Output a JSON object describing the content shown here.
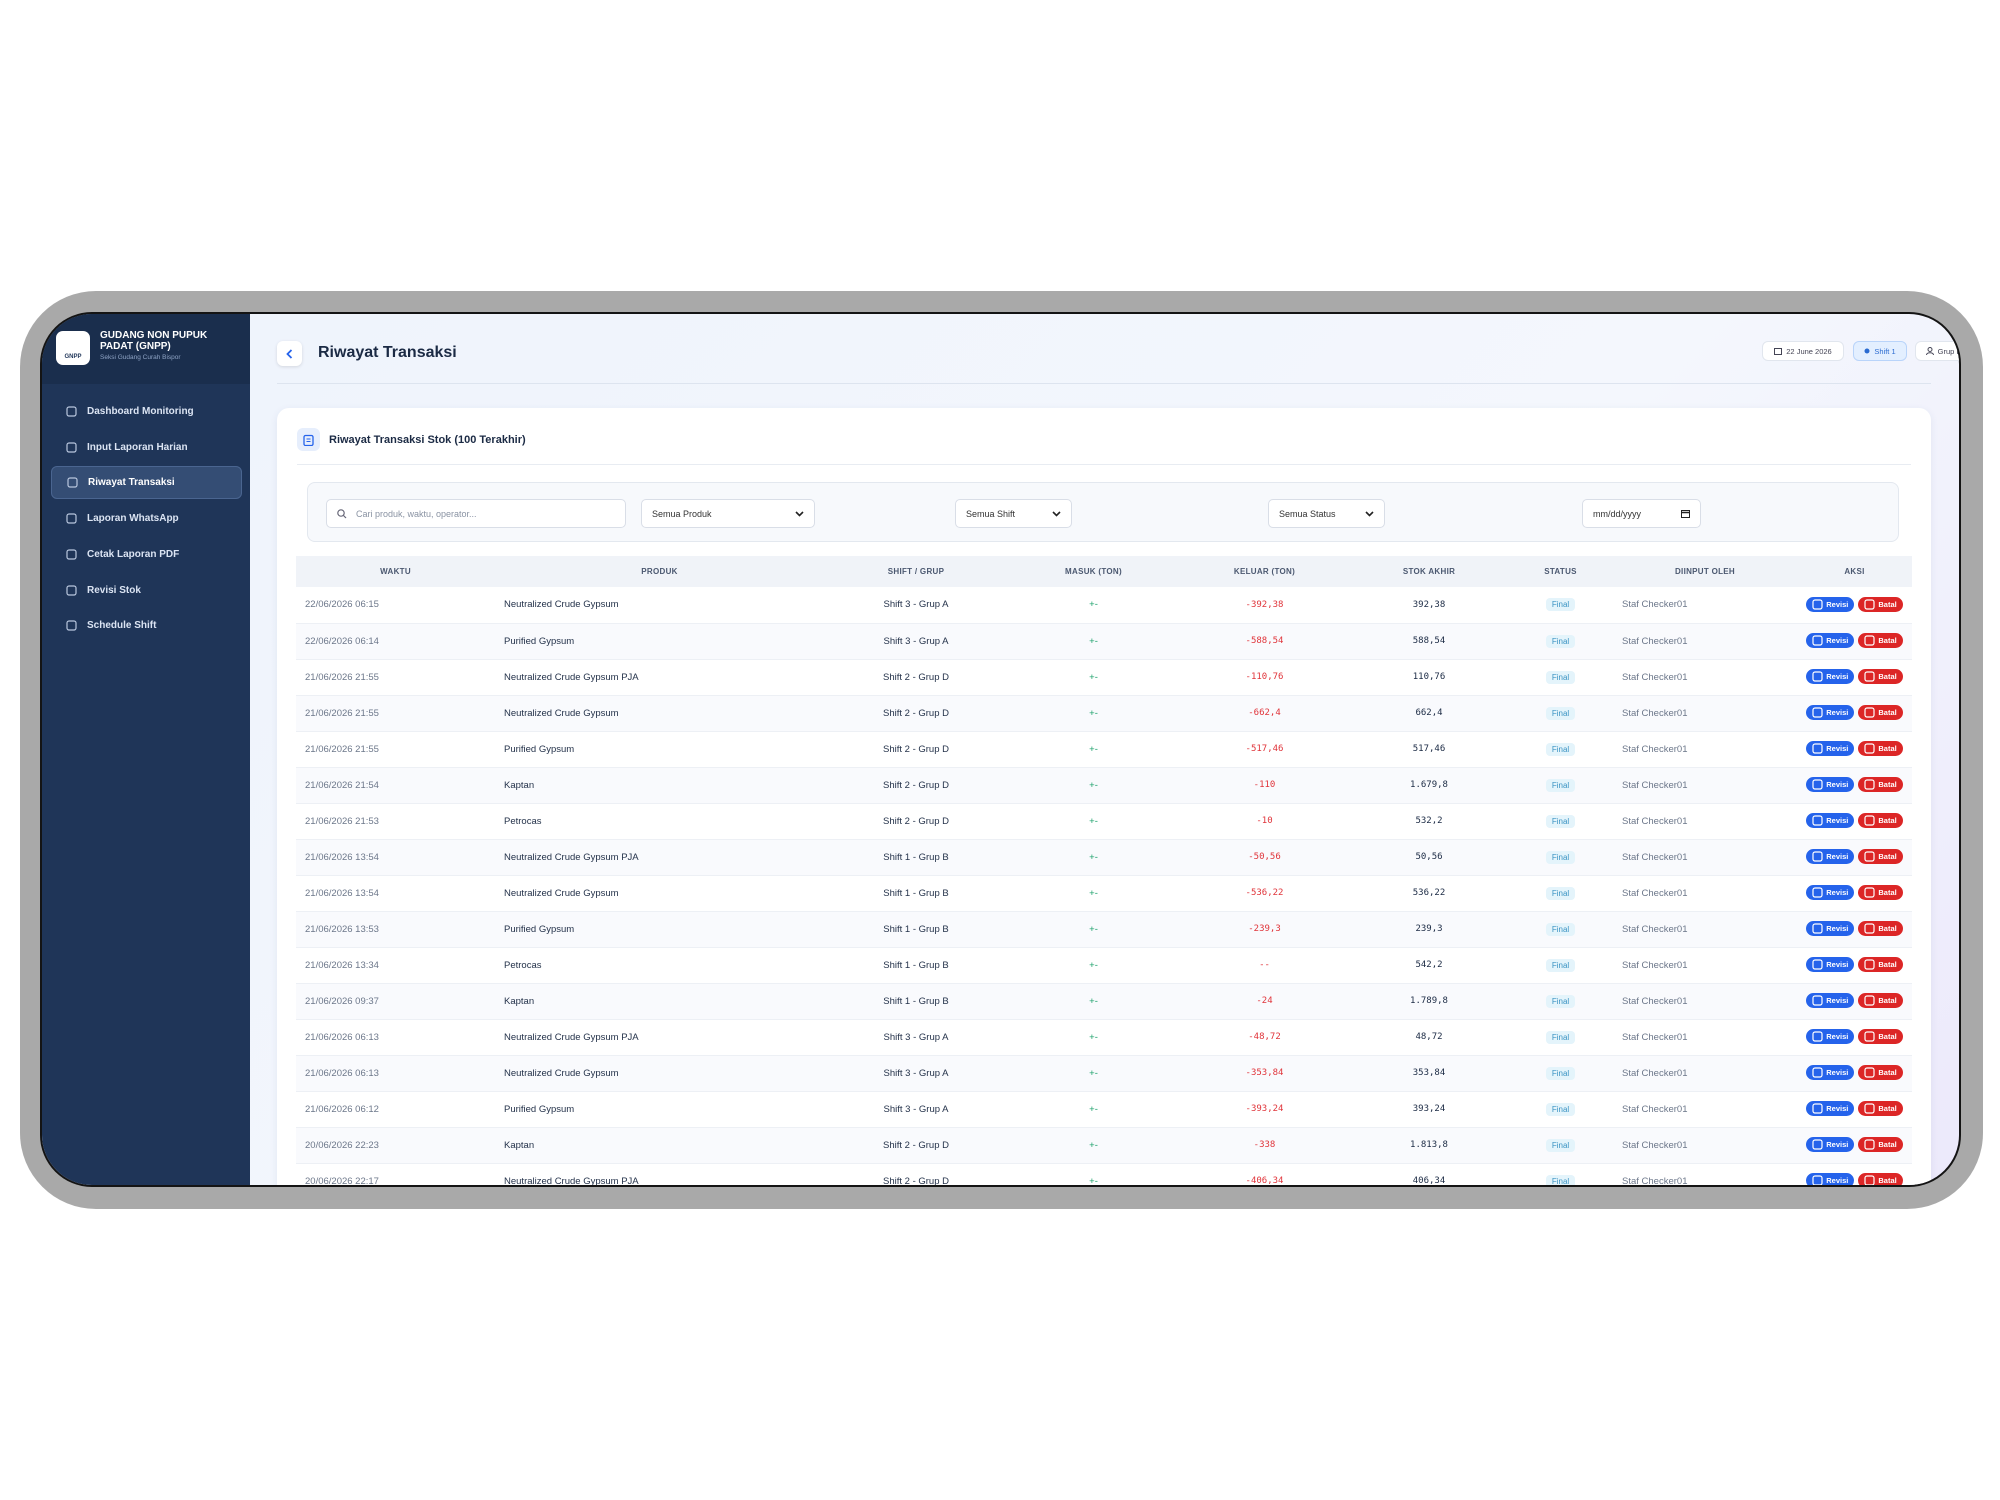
{
  "sidebar": {
    "logo_text": "GNPP",
    "brand_title": "GUDANG NON PUPUK PADAT (GNPP)",
    "brand_subtitle": "Seksi Gudang Curah Bispor",
    "active_index": 2,
    "nav": [
      "Dashboard Monitoring",
      "Input Laporan Harian",
      "Riwayat Transaksi",
      "Laporan WhatsApp",
      "Cetak Laporan PDF",
      "Revisi Stok",
      "Schedule Shift"
    ]
  },
  "header": {
    "title": "Riwayat Transaksi",
    "date": "22 June 2026",
    "shift": "Shift 1",
    "group": "Grup B"
  },
  "card": {
    "title": "Riwayat Transaksi Stok (100 Terakhir)"
  },
  "filters": {
    "search_placeholder": "Cari produk, waktu, operator...",
    "product": "Semua Produk",
    "shift": "Semua Shift",
    "status": "Semua Status",
    "date": "mm/dd/yyyy"
  },
  "table": {
    "columns": [
      "WAKTU",
      "PRODUK",
      "SHIFT / GRUP",
      "MASUK (TON)",
      "KELUAR (TON)",
      "STOK AKHIR",
      "STATUS",
      "DIINPUT OLEH",
      "AKSI"
    ],
    "actions": {
      "revise": "Revisi",
      "cancel": "Batal"
    },
    "rows": [
      [
        "22/06/2026 06:15",
        "Neutralized Crude Gypsum",
        "Shift 3 - Grup A",
        "+-",
        "-392,38",
        "392,38",
        "Final",
        "Staf Checker01"
      ],
      [
        "22/06/2026 06:14",
        "Purified Gypsum",
        "Shift 3 - Grup A",
        "+-",
        "-588,54",
        "588,54",
        "Final",
        "Staf Checker01"
      ],
      [
        "21/06/2026 21:55",
        "Neutralized Crude Gypsum PJA",
        "Shift 2 - Grup D",
        "+-",
        "-110,76",
        "110,76",
        "Final",
        "Staf Checker01"
      ],
      [
        "21/06/2026 21:55",
        "Neutralized Crude Gypsum",
        "Shift 2 - Grup D",
        "+-",
        "-662,4",
        "662,4",
        "Final",
        "Staf Checker01"
      ],
      [
        "21/06/2026 21:55",
        "Purified Gypsum",
        "Shift 2 - Grup D",
        "+-",
        "-517,46",
        "517,46",
        "Final",
        "Staf Checker01"
      ],
      [
        "21/06/2026 21:54",
        "Kaptan",
        "Shift 2 - Grup D",
        "+-",
        "-110",
        "1.679,8",
        "Final",
        "Staf Checker01"
      ],
      [
        "21/06/2026 21:53",
        "Petrocas",
        "Shift 2 - Grup D",
        "+-",
        "-10",
        "532,2",
        "Final",
        "Staf Checker01"
      ],
      [
        "21/06/2026 13:54",
        "Neutralized Crude Gypsum PJA",
        "Shift 1 - Grup B",
        "+-",
        "-50,56",
        "50,56",
        "Final",
        "Staf Checker01"
      ],
      [
        "21/06/2026 13:54",
        "Neutralized Crude Gypsum",
        "Shift 1 - Grup B",
        "+-",
        "-536,22",
        "536,22",
        "Final",
        "Staf Checker01"
      ],
      [
        "21/06/2026 13:53",
        "Purified Gypsum",
        "Shift 1 - Grup B",
        "+-",
        "-239,3",
        "239,3",
        "Final",
        "Staf Checker01"
      ],
      [
        "21/06/2026 13:34",
        "Petrocas",
        "Shift 1 - Grup B",
        "+-",
        "--",
        "542,2",
        "Final",
        "Staf Checker01"
      ],
      [
        "21/06/2026 09:37",
        "Kaptan",
        "Shift 1 - Grup B",
        "+-",
        "-24",
        "1.789,8",
        "Final",
        "Staf Checker01"
      ],
      [
        "21/06/2026 06:13",
        "Neutralized Crude Gypsum PJA",
        "Shift 3 - Grup A",
        "+-",
        "-48,72",
        "48,72",
        "Final",
        "Staf Checker01"
      ],
      [
        "21/06/2026 06:13",
        "Neutralized Crude Gypsum",
        "Shift 3 - Grup A",
        "+-",
        "-353,84",
        "353,84",
        "Final",
        "Staf Checker01"
      ],
      [
        "21/06/2026 06:12",
        "Purified Gypsum",
        "Shift 3 - Grup A",
        "+-",
        "-393,24",
        "393,24",
        "Final",
        "Staf Checker01"
      ],
      [
        "20/06/2026 22:23",
        "Kaptan",
        "Shift 2 - Grup D",
        "+-",
        "-338",
        "1.813,8",
        "Final",
        "Staf Checker01"
      ],
      [
        "20/06/2026 22:17",
        "Neutralized Crude Gypsum PJA",
        "Shift 2 - Grup D",
        "+-",
        "-406,34",
        "406,34",
        "Final",
        "Staf Checker01"
      ]
    ]
  }
}
